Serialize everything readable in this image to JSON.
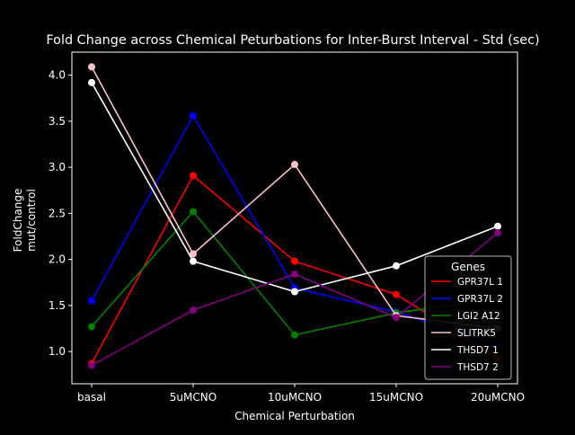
{
  "chart_data": {
    "type": "line",
    "title": "Fold Change across Chemical Peturbations for Inter-Burst Interval - Std (sec)",
    "xlabel": "Chemical Perturbation",
    "ylabel_lines": [
      "FoldChange",
      "mut/control"
    ],
    "categories": [
      "basal",
      "5uMCNO",
      "10uMCNO",
      "15uMCNO",
      "20uMCNO"
    ],
    "ylim": [
      0.65,
      4.25
    ],
    "yticks": [
      "1.0",
      "1.5",
      "2.0",
      "2.5",
      "3.0",
      "3.5",
      "4.0"
    ],
    "grid": false,
    "legend": {
      "title": "Genes",
      "placement": "center-right"
    },
    "series": [
      {
        "name": "GPR37L 1",
        "color": "#ff0000",
        "values": [
          0.87,
          2.91,
          1.98,
          1.62,
          0.93
        ]
      },
      {
        "name": "GPR37L 2",
        "color": "#0000ff",
        "values": [
          1.55,
          3.56,
          1.69,
          1.43,
          1.07
        ]
      },
      {
        "name": "LGI2 A12",
        "color": "#008000",
        "values": [
          1.27,
          2.52,
          1.18,
          1.42,
          1.57
        ]
      },
      {
        "name": "SLITRK5",
        "color": "#ffc0cb",
        "values": [
          4.09,
          2.06,
          3.03,
          1.39,
          1.25
        ]
      },
      {
        "name": "THSD7 1",
        "color": "#ffffff",
        "values": [
          3.92,
          1.98,
          1.65,
          1.93,
          2.36
        ]
      },
      {
        "name": "THSD7 2",
        "color": "#800080",
        "values": [
          0.85,
          1.45,
          1.84,
          1.37,
          2.29
        ]
      }
    ]
  }
}
